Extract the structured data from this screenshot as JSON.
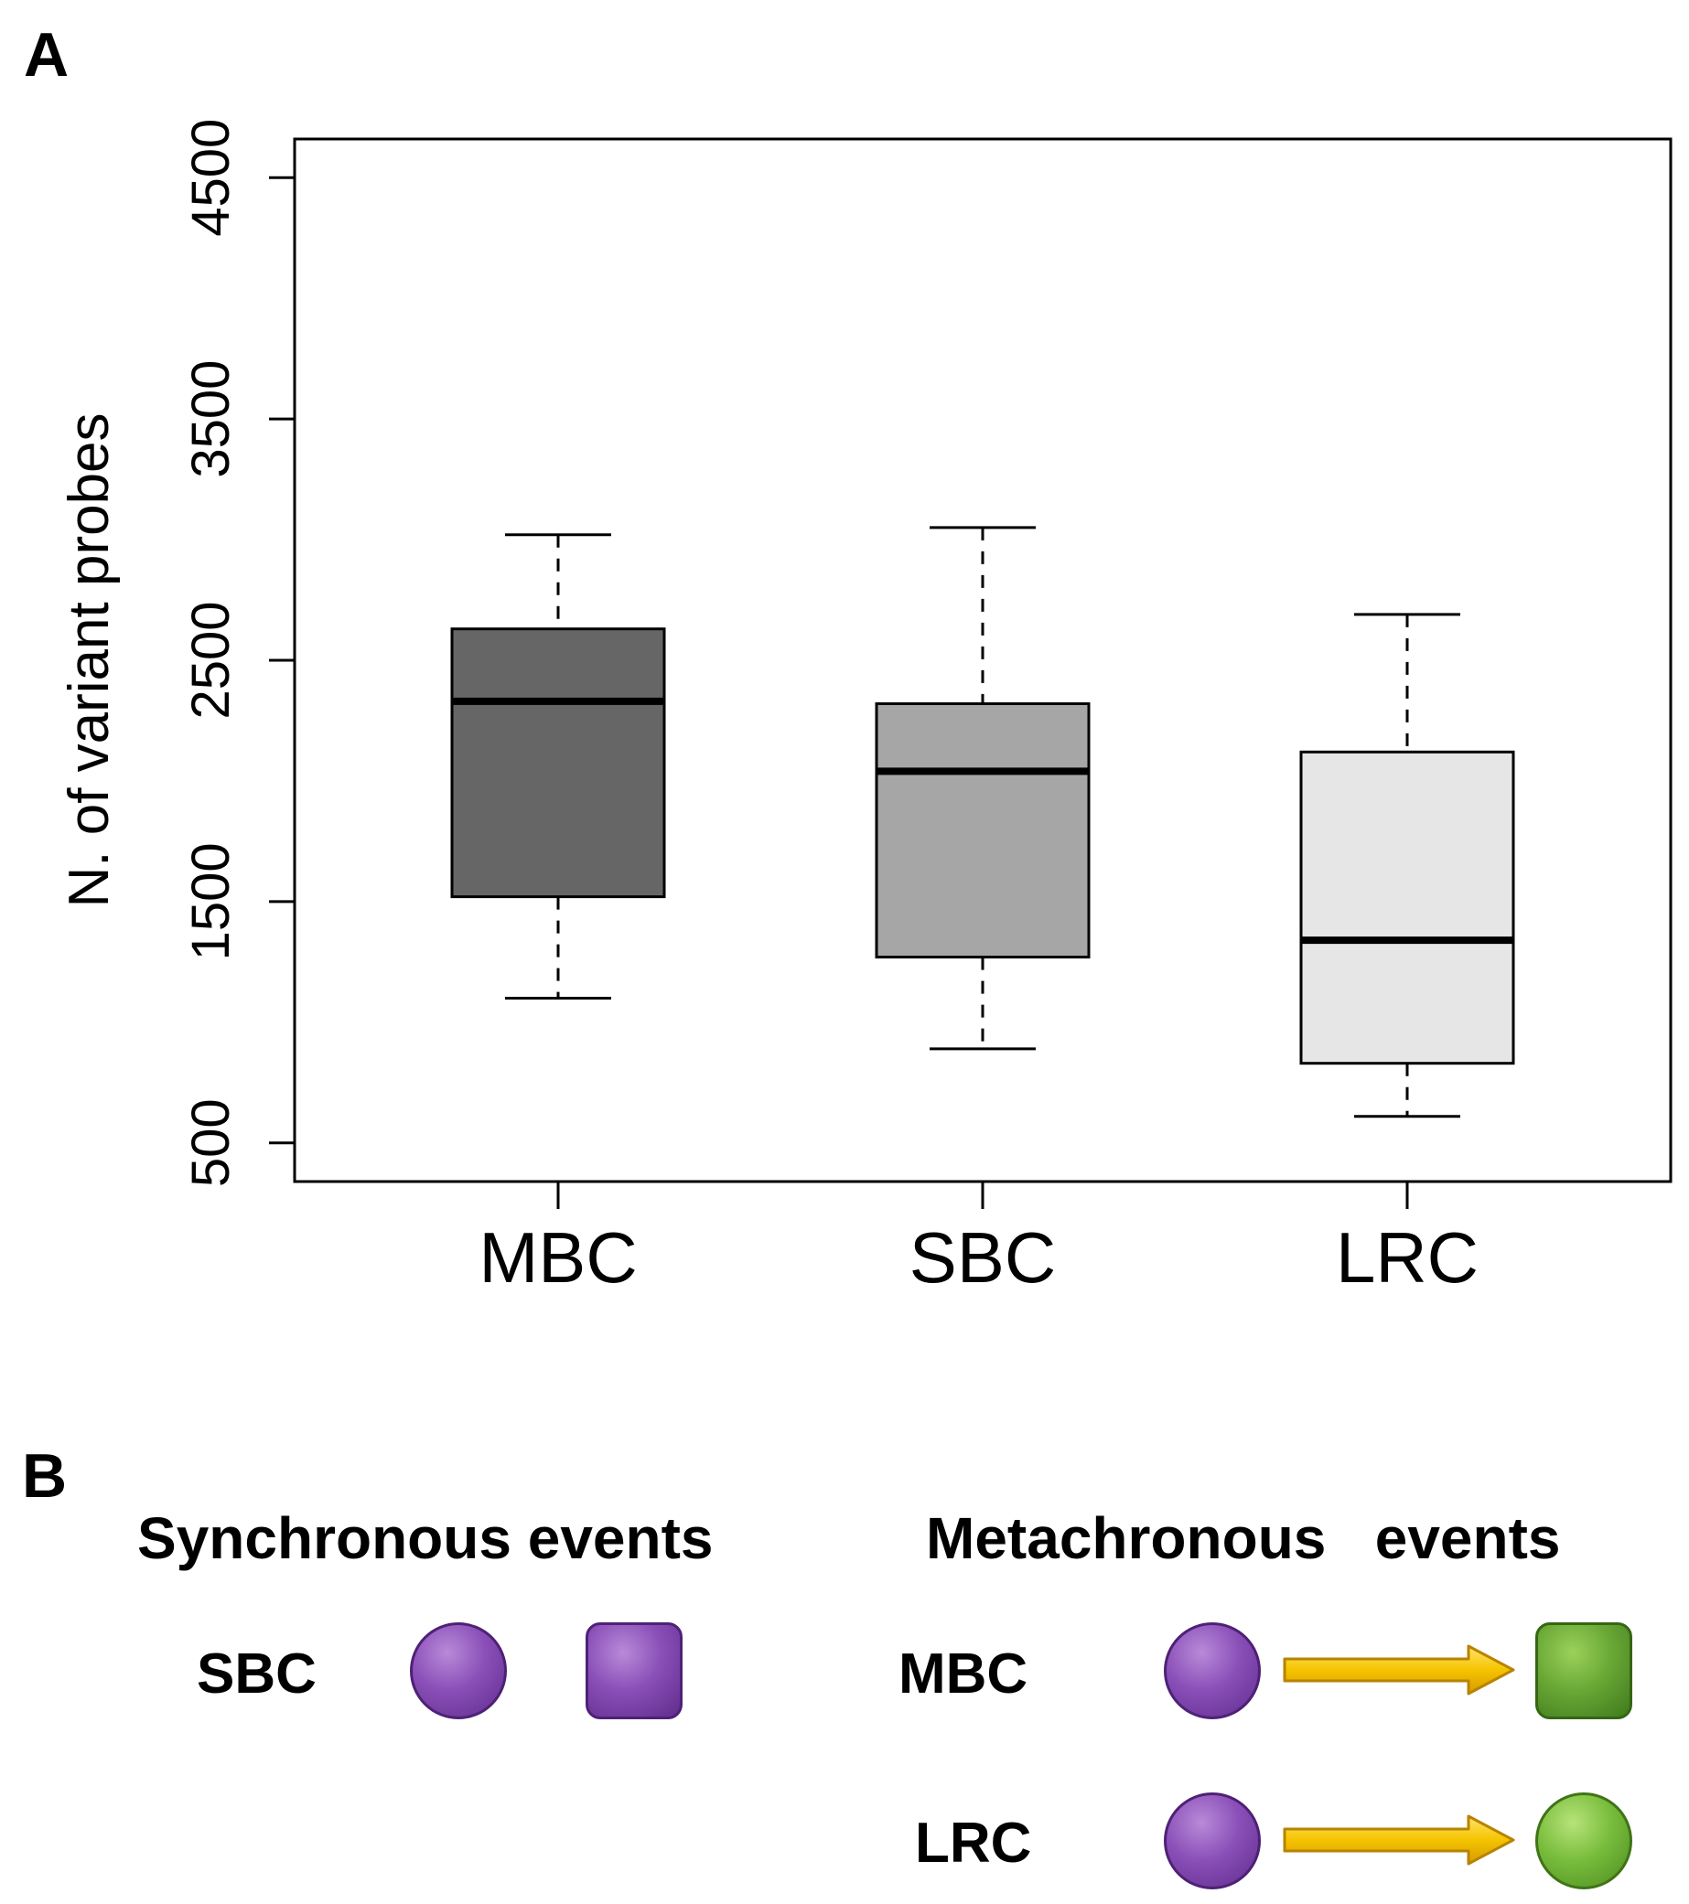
{
  "panel_a_label": "A",
  "panel_b_label": "B",
  "chart_data": {
    "type": "boxplot",
    "title": "",
    "xlabel": "",
    "ylabel": "N. of variant probes",
    "ylim": [
      340,
      4660
    ],
    "yticks": [
      500,
      1500,
      2500,
      3500,
      4500
    ],
    "categories": [
      "MBC",
      "SBC",
      "LRC"
    ],
    "series": [
      {
        "name": "MBC",
        "whisker_low": 1100,
        "q1": 1520,
        "median": 2330,
        "q3": 2630,
        "whisker_high": 3020,
        "color": "#666666"
      },
      {
        "name": "SBC",
        "whisker_low": 890,
        "q1": 1270,
        "median": 2040,
        "q3": 2320,
        "whisker_high": 3050,
        "color": "#a6a6a6"
      },
      {
        "name": "LRC",
        "whisker_low": 610,
        "q1": 830,
        "median": 1340,
        "q3": 2120,
        "whisker_high": 2690,
        "color": "#e6e6e6"
      }
    ],
    "grid": false,
    "legend": "none"
  },
  "diagram": {
    "synchronous": {
      "heading": "Synchronous events",
      "rows": [
        {
          "label": "SBC",
          "shapes": [
            "purple-circle-icon",
            "purple-square-icon"
          ]
        }
      ]
    },
    "metachronous": {
      "heading": "Metachronous   events",
      "rows": [
        {
          "label": "MBC",
          "shapes": [
            "purple-circle-icon",
            "yellow-arrow-icon",
            "green-square-icon"
          ]
        },
        {
          "label": "LRC",
          "shapes": [
            "purple-circle-icon",
            "yellow-arrow-icon",
            "green-circle-icon"
          ]
        }
      ]
    },
    "colors": {
      "purple": "#7b3fa8",
      "green": "#5ea32a",
      "arrow_yellow": "#f5c400"
    }
  }
}
